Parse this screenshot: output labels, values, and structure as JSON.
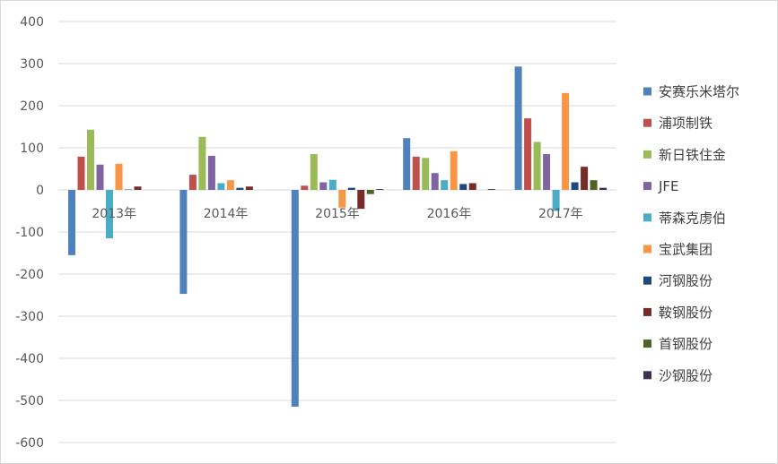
{
  "chart_data": {
    "type": "bar",
    "title": "",
    "xlabel": "",
    "ylabel": "",
    "categories": [
      "2013年",
      "2014年",
      "2015年",
      "2016年",
      "2017年"
    ],
    "ylim": [
      -600,
      400
    ],
    "yticks": [
      400,
      300,
      200,
      100,
      0,
      -100,
      -200,
      -300,
      -400,
      -500,
      -600
    ],
    "grid": true,
    "legend_position": "right",
    "series": [
      {
        "name": "安赛乐米塔尔",
        "color": "#4f81bd",
        "values": [
          -155,
          -247,
          -515,
          123,
          293
        ]
      },
      {
        "name": "浦项制铁",
        "color": "#c0504d",
        "values": [
          79,
          36,
          10,
          79,
          170
        ]
      },
      {
        "name": "新日铁住金",
        "color": "#9bbb59",
        "values": [
          143,
          126,
          85,
          76,
          114
        ]
      },
      {
        "name": "JFE",
        "color": "#8064a2",
        "values": [
          60,
          81,
          18,
          40,
          85
        ]
      },
      {
        "name": "蒂森克虏伯",
        "color": "#4bacc6",
        "values": [
          -115,
          16,
          24,
          23,
          -50
        ]
      },
      {
        "name": "宝武集团",
        "color": "#f79646",
        "values": [
          62,
          23,
          -42,
          92,
          230
        ]
      },
      {
        "name": "河钢股份",
        "color": "#1f497d",
        "values": [
          1,
          5,
          5,
          14,
          18
        ]
      },
      {
        "name": "鞍钢股份",
        "color": "#772c2a",
        "values": [
          8,
          8,
          -45,
          16,
          55
        ]
      },
      {
        "name": "首钢股份",
        "color": "#4f6228",
        "values": [
          0,
          0,
          -10,
          0,
          23
        ]
      },
      {
        "name": "沙钢股份",
        "color": "#403151",
        "values": [
          0,
          0,
          2,
          2,
          5
        ]
      }
    ]
  }
}
